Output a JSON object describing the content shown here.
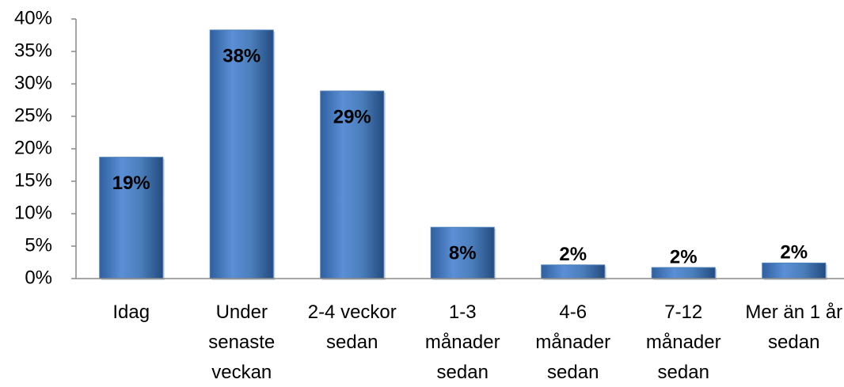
{
  "chart_data": {
    "type": "bar",
    "categories": [
      "Idag",
      "Under senaste veckan",
      "2-4 veckor sedan",
      "1-3 månader sedan",
      "4-6 månader sedan",
      "7-12 månader sedan",
      "Mer än 1 år sedan"
    ],
    "values": [
      18.7,
      38.3,
      28.9,
      7.9,
      2.1,
      1.7,
      2.4
    ],
    "value_labels": [
      "19%",
      "38%",
      "29%",
      "8%",
      "2%",
      "2%",
      "2%"
    ],
    "color": "#4a7ebb",
    "ylim": [
      0,
      40
    ],
    "yticks": [
      {
        "value": 0,
        "label": "0%"
      },
      {
        "value": 5,
        "label": "5%"
      },
      {
        "value": 10,
        "label": "10%"
      },
      {
        "value": 15,
        "label": "15%"
      },
      {
        "value": 20,
        "label": "20%"
      },
      {
        "value": 25,
        "label": "25%"
      },
      {
        "value": 30,
        "label": "30%"
      },
      {
        "value": 35,
        "label": "35%"
      },
      {
        "value": 40,
        "label": "40%"
      }
    ],
    "grid": false
  }
}
